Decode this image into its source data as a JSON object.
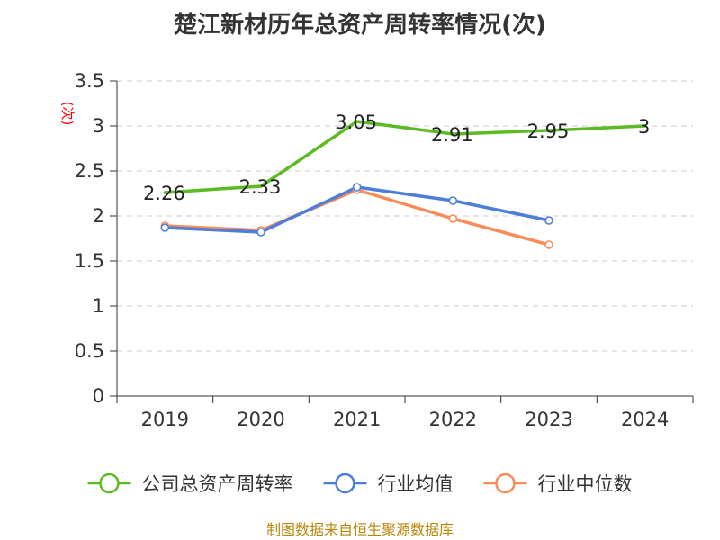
{
  "chart_data": {
    "type": "line",
    "title": "楚江新材历年总资产周转率情况(次)",
    "ylabel": "(次)",
    "xlabel": "",
    "categories": [
      "2019",
      "2020",
      "2021",
      "2022",
      "2023",
      "2024"
    ],
    "ylim": [
      0,
      3.5
    ],
    "yticks": [
      0,
      0.5,
      1,
      1.5,
      2,
      2.5,
      3,
      3.5
    ],
    "ytick_labels": [
      "0",
      "0.5",
      "1",
      "1.5",
      "2",
      "2.5",
      "3",
      "3.5"
    ],
    "grid": true,
    "legend_position": "bottom",
    "series": [
      {
        "name": "公司总资产周转率",
        "color": "#5cbb23",
        "values": [
          2.26,
          2.33,
          3.05,
          2.91,
          2.95,
          3.0
        ],
        "labels": [
          "2.26",
          "2.33",
          "3.05",
          "2.91",
          "2.95",
          "3"
        ],
        "show_markers": false,
        "show_labels": true
      },
      {
        "name": "行业均值",
        "color": "#4d7fd9",
        "values": [
          1.87,
          1.82,
          2.32,
          2.17,
          1.95,
          null
        ],
        "show_markers": true,
        "show_labels": false
      },
      {
        "name": "行业中位数",
        "color": "#f78b59",
        "values": [
          1.89,
          1.84,
          2.29,
          1.97,
          1.68,
          null
        ],
        "show_markers": true,
        "show_labels": false
      }
    ]
  },
  "footer": {
    "source": "制图数据来自恒生聚源数据库"
  }
}
